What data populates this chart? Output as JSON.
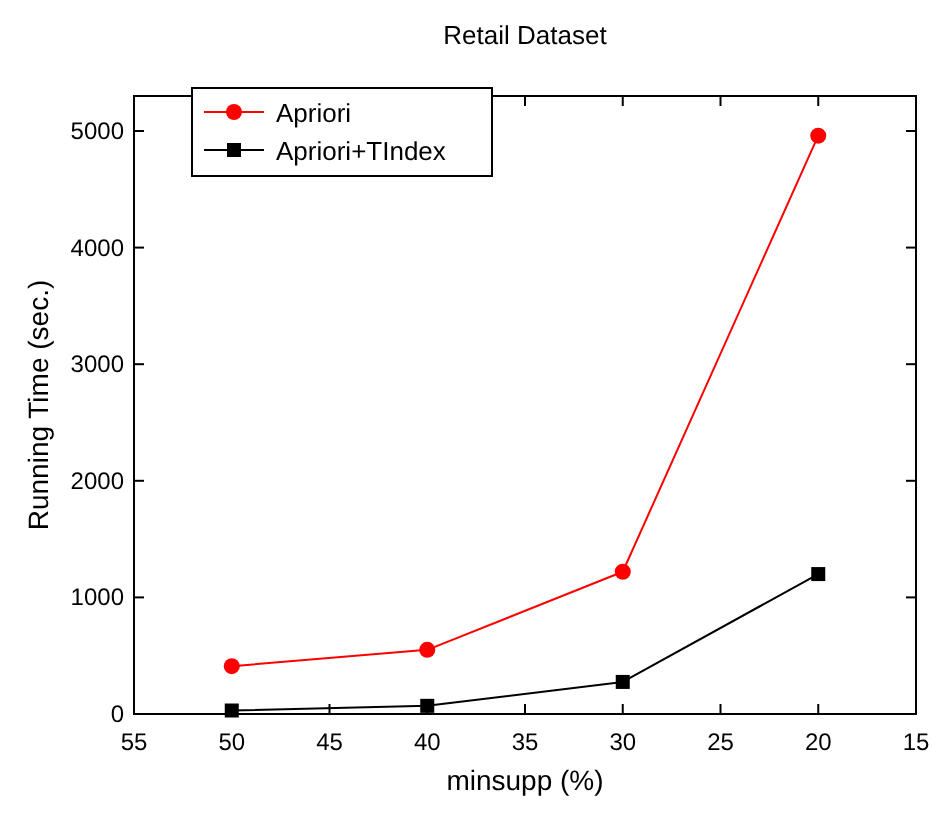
{
  "chart_data": {
    "type": "line",
    "title": "Retail Dataset",
    "xlabel": "minsupp (%)",
    "ylabel": "Running Time (sec.)",
    "x": [
      50,
      40,
      30,
      20
    ],
    "xlim": [
      55,
      15
    ],
    "xticks": [
      55,
      50,
      45,
      40,
      35,
      30,
      25,
      20,
      15
    ],
    "ylim": [
      0,
      5300
    ],
    "yticks": [
      0,
      1000,
      2000,
      3000,
      4000,
      5000
    ],
    "legend": "top left",
    "grid": false,
    "series": [
      {
        "name": "Apriori",
        "color": "#ff0000",
        "marker": "circle",
        "values": [
          410,
          550,
          1220,
          4960
        ]
      },
      {
        "name": "Apriori+TIndex",
        "color": "#000000",
        "marker": "square",
        "values": [
          30,
          70,
          275,
          1200
        ]
      }
    ]
  }
}
